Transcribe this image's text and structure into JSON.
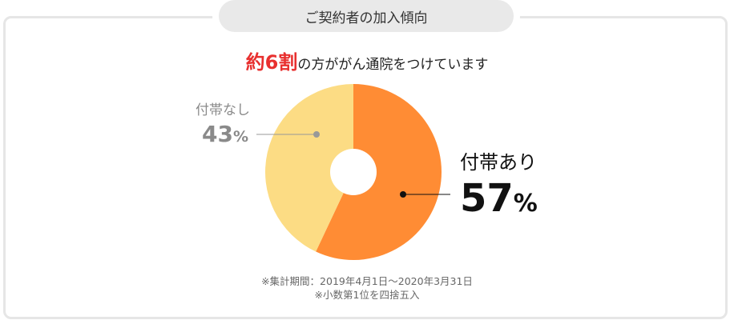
{
  "header": {
    "title": "ご契約者の加入傾向"
  },
  "headline": {
    "highlight": "約6割",
    "rest": "の方ががん通院をつけています"
  },
  "chart_data": {
    "type": "pie",
    "donut": true,
    "categories": [
      "付帯あり",
      "付帯なし"
    ],
    "values": [
      57,
      43
    ],
    "unit": "%",
    "colors": [
      "#ff8c34",
      "#fcdc84"
    ]
  },
  "labels": {
    "attached": {
      "name": "付帯あり",
      "value": "57",
      "unit": "%"
    },
    "not_attached": {
      "name": "付帯なし",
      "value": "43",
      "unit": "%"
    }
  },
  "notes": {
    "period": "※集計期間：2019年4月1日～2020年3月31日",
    "rounding": "※小数第1位を四捨五入"
  }
}
